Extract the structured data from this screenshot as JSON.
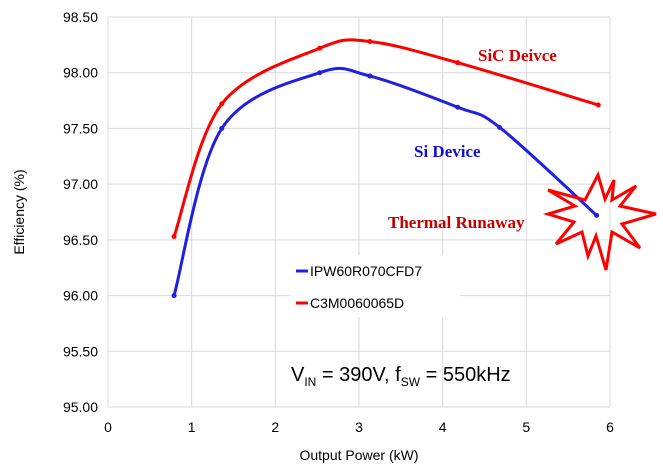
{
  "chart_data": {
    "type": "line",
    "xlabel": "Output Power (kW)",
    "ylabel": "Efficiency (%)",
    "xlim": [
      0,
      6
    ],
    "ylim": [
      95.0,
      98.5
    ],
    "xticks": [
      "0",
      "1",
      "2",
      "3",
      "4",
      "5",
      "6"
    ],
    "yticks": [
      "95.00",
      "95.50",
      "96.00",
      "96.50",
      "97.00",
      "97.50",
      "98.00",
      "98.50"
    ],
    "grid": true,
    "legend": "center",
    "series": [
      {
        "name": "IPW60R070CFD7",
        "color": "#2020e0",
        "x": [
          0.79,
          1.36,
          2.53,
          3.13,
          4.18,
          4.68,
          5.84
        ],
        "y": [
          96.0,
          97.5,
          98.0,
          97.97,
          97.69,
          97.51,
          96.72
        ]
      },
      {
        "name": "C3M0060065D",
        "color": "#ff0000",
        "x": [
          0.79,
          1.36,
          2.53,
          3.13,
          4.18,
          5.86
        ],
        "y": [
          96.53,
          97.72,
          98.22,
          98.28,
          98.09,
          97.71
        ]
      }
    ],
    "annotations": {
      "sic": "SiC Deivce",
      "si": "Si Device",
      "runaway": "Thermal Runaway",
      "cond_v": "V",
      "cond_vsub": "IN",
      "cond_mid": " = 390V, f",
      "cond_fsub": "SW",
      "cond_end": " = 550kHz"
    }
  }
}
